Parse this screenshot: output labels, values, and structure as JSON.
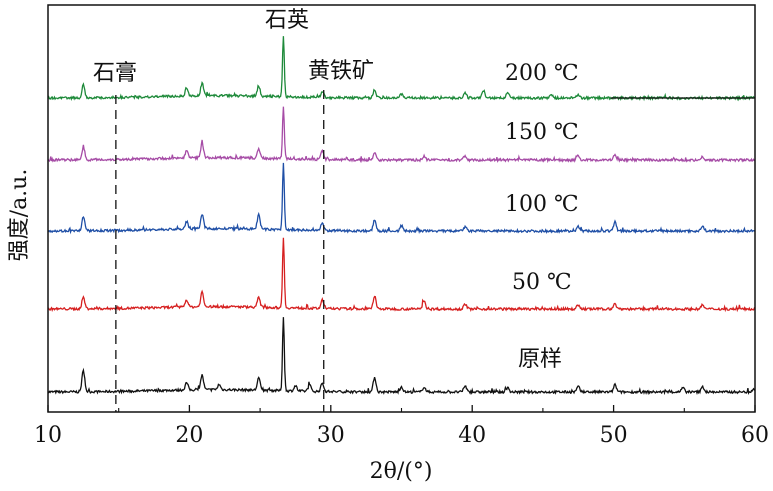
{
  "chart_data": {
    "type": "line",
    "title": "",
    "xlabel": "2θ/(°)",
    "ylabel": "强度/a.u.",
    "xlim": [
      10,
      60
    ],
    "xticks": [
      10,
      20,
      30,
      40,
      50,
      60
    ],
    "grid": false,
    "legend": "none",
    "series": [
      {
        "name": "原样",
        "color": "#111111",
        "baseline": 0,
        "peaks": [
          [
            12.5,
            20
          ],
          [
            19.8,
            7
          ],
          [
            20.9,
            14
          ],
          [
            22.1,
            5
          ],
          [
            24.9,
            12
          ],
          [
            26.65,
            70
          ],
          [
            27.5,
            5
          ],
          [
            28.5,
            6
          ],
          [
            29.4,
            8
          ],
          [
            33.1,
            14
          ],
          [
            35.0,
            5
          ],
          [
            36.6,
            5
          ],
          [
            39.5,
            6
          ],
          [
            42.5,
            4
          ],
          [
            47.5,
            5
          ],
          [
            50.1,
            7
          ],
          [
            54.9,
            4
          ],
          [
            56.3,
            5
          ],
          [
            59.9,
            3
          ]
        ]
      },
      {
        "name": "50 ℃",
        "color": "#d62020",
        "baseline": 1,
        "peaks": [
          [
            12.5,
            11
          ],
          [
            19.8,
            7
          ],
          [
            20.9,
            14
          ],
          [
            24.9,
            9
          ],
          [
            26.65,
            67
          ],
          [
            29.4,
            8
          ],
          [
            33.1,
            12
          ],
          [
            36.6,
            8
          ],
          [
            39.5,
            5
          ],
          [
            47.5,
            4
          ],
          [
            50.1,
            5
          ],
          [
            56.3,
            4
          ]
        ]
      },
      {
        "name": "100 ℃",
        "color": "#1f4fa6",
        "baseline": 2,
        "peaks": [
          [
            12.5,
            13
          ],
          [
            19.8,
            7
          ],
          [
            20.9,
            14
          ],
          [
            24.9,
            14
          ],
          [
            26.65,
            63
          ],
          [
            29.4,
            7
          ],
          [
            33.1,
            10
          ],
          [
            35.0,
            5
          ],
          [
            39.5,
            4
          ],
          [
            47.5,
            4
          ],
          [
            50.1,
            9
          ],
          [
            56.3,
            5
          ]
        ]
      },
      {
        "name": "150 ℃",
        "color": "#a64ca6",
        "baseline": 3,
        "peaks": [
          [
            12.5,
            12
          ],
          [
            19.8,
            7
          ],
          [
            20.9,
            14
          ],
          [
            24.9,
            9
          ],
          [
            26.65,
            50
          ],
          [
            29.4,
            8
          ],
          [
            33.1,
            7
          ],
          [
            36.6,
            4
          ],
          [
            39.5,
            4
          ],
          [
            47.5,
            4
          ],
          [
            50.1,
            5
          ],
          [
            56.3,
            3
          ]
        ]
      },
      {
        "name": "200 ℃",
        "color": "#1e8a3a",
        "baseline": 4,
        "peaks": [
          [
            12.5,
            12
          ],
          [
            19.8,
            7
          ],
          [
            20.9,
            12
          ],
          [
            24.9,
            10
          ],
          [
            26.65,
            58
          ],
          [
            29.4,
            6
          ],
          [
            33.1,
            8
          ],
          [
            35.0,
            4
          ],
          [
            39.5,
            5
          ],
          [
            40.8,
            7
          ],
          [
            42.5,
            5
          ],
          [
            45.6,
            3
          ],
          [
            47.5,
            3
          ]
        ]
      }
    ],
    "annotations": [
      {
        "label": "石膏",
        "x": 14.8
      },
      {
        "label": "石英",
        "x": 26.65
      },
      {
        "label": "黄铁矿",
        "x": 29.5
      }
    ]
  }
}
